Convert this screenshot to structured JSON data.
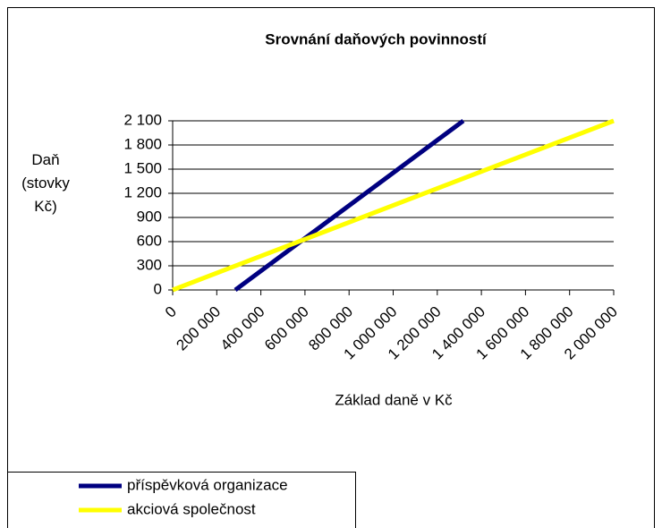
{
  "chart_data": {
    "type": "line",
    "title": "Srovnání daňových povinností",
    "x_label": "Základ daně v Kč",
    "y_label": "Daň (stovky Kč)",
    "xlim": [
      0,
      2000000
    ],
    "xticks": [
      0,
      {
        "value": 200000,
        "label": "200 000"
      },
      {
        "value": 400000,
        "label": "400 000"
      },
      {
        "value": 600000,
        "label": "600 000"
      },
      {
        "value": 800000,
        "label": "800 000"
      },
      {
        "value": 1000000,
        "label": "1 000 000"
      },
      {
        "value": 1200000,
        "label": "1 200 000"
      },
      {
        "value": 1400000,
        "label": "1 400 000"
      },
      {
        "value": 1600000,
        "label": "1 600 000"
      },
      {
        "value": 1800000,
        "label": "1 800 000"
      },
      {
        "value": 2000000,
        "label": "2 000 000"
      }
    ],
    "ylim": [
      0,
      2100
    ],
    "yticks": [
      0,
      300,
      600,
      900,
      {
        "value": 1200,
        "label": "1 200"
      },
      {
        "value": 1500,
        "label": "1 500"
      },
      {
        "value": 1800,
        "label": "1 800"
      },
      {
        "value": 2100,
        "label": "2 100"
      }
    ],
    "grid": true,
    "legend": "bottom-left",
    "series": [
      {
        "name": "příspěvková organizace",
        "color": "#000080",
        "x": [
          284000,
          1318000
        ],
        "values": [
          0,
          2100
        ]
      },
      {
        "name": "akciová společnost",
        "color": "#ffff00",
        "x": [
          0,
          2000000
        ],
        "values": [
          0,
          2100
        ]
      }
    ]
  }
}
